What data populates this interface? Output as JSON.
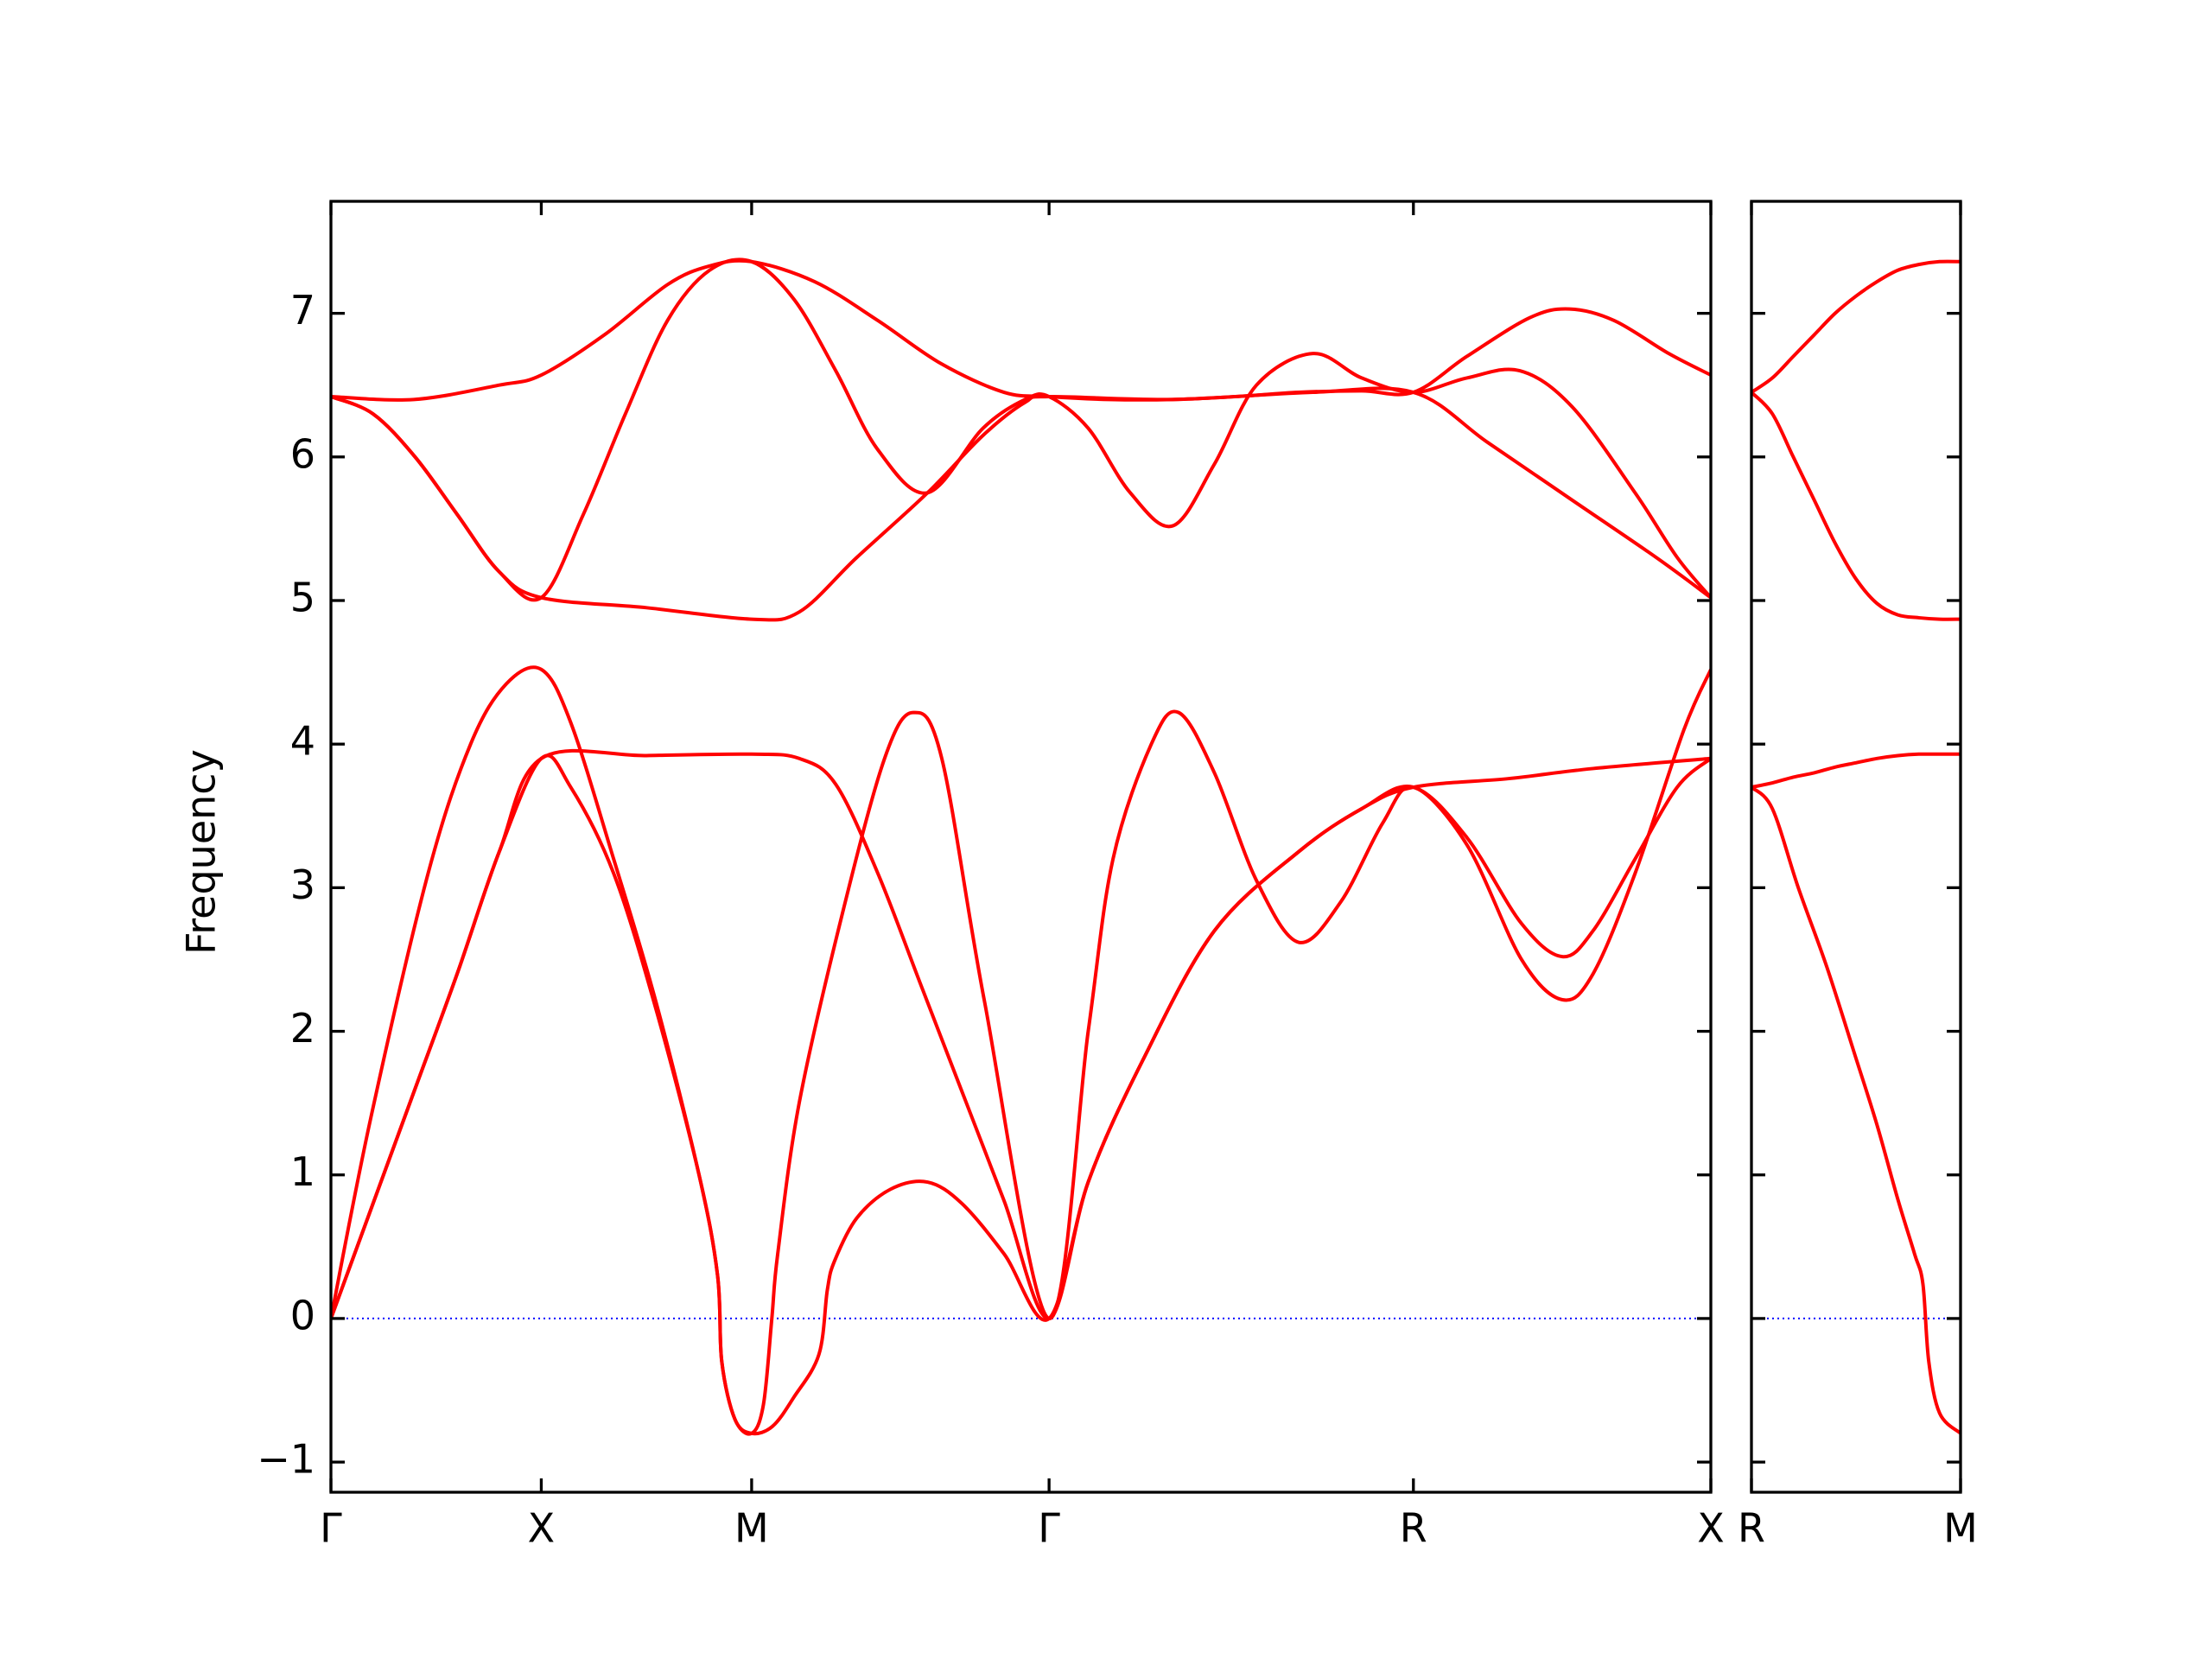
{
  "chart_data": [
    {
      "type": "line",
      "ylabel": "Frequency",
      "xlim": [
        0,
        3.28
      ],
      "ylim": [
        -1.21,
        7.78
      ],
      "xticks": [
        {
          "value": 0,
          "label": "Γ"
        },
        {
          "value": 0.5,
          "label": "X"
        },
        {
          "value": 1.0,
          "label": "M"
        },
        {
          "value": 1.707,
          "label": "Γ"
        },
        {
          "value": 2.573,
          "label": "R"
        },
        {
          "value": 3.28,
          "label": "X"
        }
      ],
      "yticks": [
        {
          "value": -1,
          "label": "−1"
        },
        0,
        1,
        2,
        3,
        4,
        5,
        6,
        7
      ],
      "grid": false,
      "zero_line": true,
      "zero_line_color": "#0000ff",
      "series": [
        {
          "color": "#ff0000",
          "x": [
            0,
            0.197,
            0.4,
            0.5,
            0.65,
            0.8,
            0.9,
            1.0,
            1.15,
            1.3,
            1.45,
            1.6,
            1.707,
            1.85,
            2.0,
            2.15,
            2.3,
            2.45,
            2.573,
            2.7,
            2.85,
            2.944,
            3.05,
            3.18,
            3.28
          ],
          "values": [
            6.42,
            6.4,
            6.5,
            6.57,
            6.85,
            7.2,
            7.33,
            7.36,
            7.22,
            6.95,
            6.65,
            6.45,
            6.42,
            6.4,
            6.4,
            6.42,
            6.45,
            6.46,
            6.45,
            6.7,
            6.97,
            7.03,
            6.95,
            6.72,
            6.57
          ]
        },
        {
          "color": "#ff0000",
          "x": [
            0,
            0.1,
            0.2,
            0.3,
            0.4,
            0.5,
            0.6,
            0.7,
            0.8,
            0.9,
            1.0,
            1.1,
            1.2,
            1.3,
            1.418,
            1.55,
            1.65,
            1.707,
            1.8,
            1.9,
            2.001,
            2.1,
            2.2,
            2.334,
            2.45,
            2.573,
            2.7,
            2.826,
            2.95,
            3.1,
            3.2,
            3.28
          ],
          "values": [
            6.42,
            6.3,
            6.0,
            5.6,
            5.2,
            5.02,
            5.6,
            6.3,
            6.95,
            7.3,
            7.36,
            7.1,
            6.6,
            6.05,
            5.75,
            6.2,
            6.4,
            6.42,
            6.2,
            5.75,
            5.52,
            5.95,
            6.5,
            6.72,
            6.55,
            6.45,
            6.55,
            6.6,
            6.35,
            5.75,
            5.3,
            5.02
          ]
        },
        {
          "color": "#ff0000",
          "x": [
            0,
            0.1,
            0.2,
            0.3,
            0.4,
            0.5,
            0.75,
            1.0,
            1.113,
            1.25,
            1.418,
            1.55,
            1.65,
            1.707,
            2.0,
            2.334,
            2.573,
            2.75,
            2.95,
            3.15,
            3.28
          ],
          "values": [
            6.42,
            6.3,
            6.0,
            5.6,
            5.2,
            5.02,
            4.95,
            4.87,
            4.92,
            5.3,
            5.75,
            6.15,
            6.38,
            6.42,
            6.4,
            6.45,
            6.45,
            6.1,
            5.7,
            5.3,
            5.02
          ]
        },
        {
          "color": "#ff0000",
          "x": [
            0,
            0.095,
            0.231,
            0.332,
            0.417,
            0.5,
            0.57,
            0.672,
            0.773,
            0.875,
            0.919,
            0.929,
            0.96,
            1.0,
            1.028,
            1.048,
            1.062,
            1.113,
            1.214,
            1.316,
            1.384,
            1.452,
            1.554,
            1.707,
            1.8,
            1.859,
            1.95,
            2.015,
            2.1,
            2.2,
            2.3,
            2.4,
            2.5,
            2.573,
            2.7,
            2.83,
            2.927,
            3.0,
            3.1,
            3.216,
            3.28
          ],
          "values": [
            0,
            1.4,
            3.1,
            4.0,
            4.42,
            4.52,
            4.15,
            3.2,
            2.2,
            1.0,
            0.3,
            -0.3,
            -0.7,
            -0.8,
            -0.6,
            0.0,
            0.45,
            1.5,
            2.8,
            3.9,
            4.22,
            3.9,
            2.2,
            0,
            2.0,
            3.2,
            4.0,
            4.22,
            3.8,
            3.05,
            2.62,
            2.9,
            3.45,
            3.7,
            3.3,
            2.5,
            2.22,
            2.4,
            3.1,
            4.1,
            4.52
          ]
        },
        {
          "color": "#ff0000",
          "x": [
            0,
            0.1,
            0.2,
            0.3,
            0.4,
            0.5,
            0.75,
            1.0,
            1.113,
            1.2,
            1.3,
            1.4,
            1.5,
            1.6,
            1.707,
            1.8,
            1.93,
            2.1,
            2.3,
            2.45,
            2.573,
            2.8,
            3.0,
            3.28
          ],
          "values": [
            0,
            0.8,
            1.6,
            2.4,
            3.25,
            3.9,
            3.92,
            3.93,
            3.9,
            3.72,
            3.1,
            2.34,
            1.58,
            0.82,
            0,
            0.95,
            1.8,
            2.7,
            3.25,
            3.55,
            3.7,
            3.76,
            3.83,
            3.9
          ]
        },
        {
          "color": "#ff0000",
          "x": [
            0,
            0.1,
            0.2,
            0.3,
            0.4,
            0.5,
            0.57,
            0.672,
            0.773,
            0.875,
            0.919,
            0.929,
            0.96,
            1.0,
            1.05,
            1.1,
            1.16,
            1.18,
            1.197,
            1.25,
            1.33,
            1.418,
            1.5,
            1.6,
            1.707,
            1.8,
            1.93,
            2.1,
            2.3,
            2.45,
            2.573,
            2.7,
            2.83,
            2.927,
            3.0,
            3.1,
            3.2,
            3.28
          ],
          "values": [
            0,
            0.8,
            1.6,
            2.4,
            3.25,
            3.9,
            3.7,
            3.1,
            2.15,
            1.0,
            0.3,
            -0.3,
            -0.7,
            -0.8,
            -0.75,
            -0.55,
            -0.25,
            0.2,
            0.4,
            0.7,
            0.9,
            0.95,
            0.8,
            0.45,
            0,
            0.95,
            1.8,
            2.7,
            3.25,
            3.55,
            3.7,
            3.35,
            2.75,
            2.52,
            2.7,
            3.2,
            3.7,
            3.9
          ]
        }
      ]
    },
    {
      "type": "line",
      "xlim": [
        0,
        0.5
      ],
      "ylim": [
        -1.21,
        7.78
      ],
      "xticks": [
        {
          "value": 0,
          "label": "R"
        },
        {
          "value": 0.5,
          "label": "M"
        }
      ],
      "yticks": [
        -1,
        0,
        1,
        2,
        3,
        4,
        5,
        6,
        7
      ],
      "ytick_labels": false,
      "grid": false,
      "zero_line": true,
      "zero_line_color": "#0000ff",
      "series": [
        {
          "color": "#ff0000",
          "x": [
            0,
            0.05,
            0.1,
            0.15,
            0.2,
            0.25,
            0.3,
            0.35,
            0.4,
            0.45,
            0.5
          ],
          "values": [
            6.45,
            6.55,
            6.7,
            6.85,
            7.0,
            7.12,
            7.22,
            7.3,
            7.34,
            7.36,
            7.36
          ]
        },
        {
          "color": "#ff0000",
          "x": [
            0,
            0.05,
            0.1,
            0.15,
            0.2,
            0.25,
            0.3,
            0.35,
            0.4,
            0.45,
            0.5
          ],
          "values": [
            6.45,
            6.3,
            6.0,
            5.7,
            5.4,
            5.15,
            4.98,
            4.9,
            4.88,
            4.87,
            4.87
          ]
        },
        {
          "color": "#ff0000",
          "x": [
            0,
            0.05,
            0.1,
            0.15,
            0.2,
            0.25,
            0.3,
            0.35,
            0.4,
            0.45,
            0.5
          ],
          "values": [
            3.7,
            3.73,
            3.77,
            3.8,
            3.84,
            3.87,
            3.9,
            3.92,
            3.93,
            3.93,
            3.93
          ]
        },
        {
          "color": "#ff0000",
          "x": [
            0,
            0.05,
            0.112,
            0.18,
            0.248,
            0.3,
            0.35,
            0.39,
            0.41,
            0.424,
            0.45,
            0.5
          ],
          "values": [
            3.7,
            3.55,
            3.0,
            2.45,
            1.83,
            1.35,
            0.83,
            0.45,
            0.24,
            -0.3,
            -0.66,
            -0.8
          ]
        }
      ]
    }
  ]
}
